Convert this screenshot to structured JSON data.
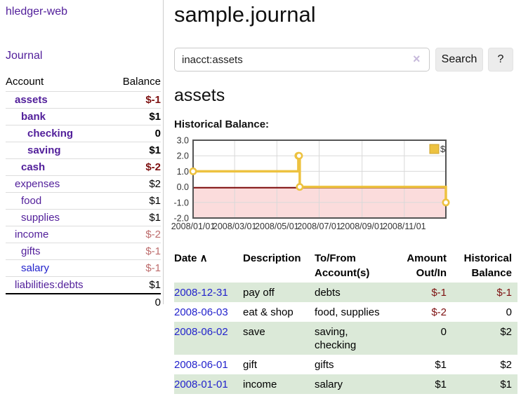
{
  "app": {
    "brand": "hledger-web",
    "nav_journal": "Journal"
  },
  "sidebar": {
    "accounts_table": {
      "headers": {
        "account": "Account",
        "balance": "Balance"
      },
      "rows": [
        {
          "name": "assets",
          "balance": "$-1",
          "depth": 1,
          "emph": true
        },
        {
          "name": "bank",
          "balance": "$1",
          "depth": 2,
          "emph": true
        },
        {
          "name": "checking",
          "balance": "0",
          "depth": 3,
          "emph": true
        },
        {
          "name": "saving",
          "balance": "$1",
          "depth": 3,
          "emph": true
        },
        {
          "name": "cash",
          "balance": "$-2",
          "depth": 2,
          "emph": true
        },
        {
          "name": "expenses",
          "balance": "$2",
          "depth": 1,
          "emph": false
        },
        {
          "name": "food",
          "balance": "$1",
          "depth": 2,
          "emph": false
        },
        {
          "name": "supplies",
          "balance": "$1",
          "depth": 2,
          "emph": false
        },
        {
          "name": "income",
          "balance": "$-2",
          "depth": 1,
          "emph": false
        },
        {
          "name": "gifts",
          "balance": "$-1",
          "depth": 2,
          "emph": false
        },
        {
          "name": "salary",
          "balance": "$-1",
          "depth": 2,
          "emph": false,
          "link_color": "blue"
        },
        {
          "name": "liabilities:debts",
          "balance": "$1",
          "depth": 1,
          "emph": false
        }
      ],
      "total": "0"
    }
  },
  "header": {
    "title": "sample.journal"
  },
  "search": {
    "value": "inacct:assets",
    "clear_icon": "×",
    "button_label": "Search",
    "help_label": "?"
  },
  "account_page": {
    "heading": "assets",
    "chart_label": "Historical Balance:"
  },
  "chart_data": {
    "type": "line",
    "step": true,
    "title": "Historical Balance",
    "series": [
      {
        "name": "$",
        "color": "#edc240",
        "points": [
          [
            "2008-01-01",
            1
          ],
          [
            "2008-06-01",
            2
          ],
          [
            "2008-06-02",
            2
          ],
          [
            "2008-06-03",
            0
          ],
          [
            "2008-12-31",
            -1
          ]
        ]
      }
    ],
    "xlim": [
      "2008-01-01",
      "2008-12-31"
    ],
    "ylim": [
      -2,
      3
    ],
    "yticks": [
      3.0,
      2.0,
      1.0,
      0.0,
      -1.0,
      -2.0
    ],
    "xticks": [
      "2008/01/01",
      "2008/03/01",
      "2008/05/01",
      "2008/07/01",
      "2008/09/01",
      "2008/11/01"
    ],
    "legend": "$",
    "legend_position": "top-right",
    "grid": true,
    "negative_fill": "#fbdcdc",
    "zero_line_color": "#7d0b0b",
    "grid_color": "#d9d9d9",
    "border_color": "#555555"
  },
  "register": {
    "columns": [
      {
        "label": "Date",
        "sort": "∧",
        "align": "left"
      },
      {
        "label": "Description",
        "align": "left"
      },
      {
        "label": "To/From Account(s)",
        "align": "left"
      },
      {
        "label": "Amount Out/In",
        "align": "right"
      },
      {
        "label": "Historical Balance",
        "align": "right"
      }
    ],
    "rows": [
      {
        "date": "2008-12-31",
        "description": "pay off",
        "accounts": "debts",
        "amount": "$-1",
        "balance": "$-1"
      },
      {
        "date": "2008-06-03",
        "description": "eat & shop",
        "accounts": "food, supplies",
        "amount": "$-2",
        "balance": "0"
      },
      {
        "date": "2008-06-02",
        "description": "save",
        "accounts": "saving, checking",
        "amount": "0",
        "balance": "$2"
      },
      {
        "date": "2008-06-01",
        "description": "gift",
        "accounts": "gifts",
        "amount": "$1",
        "balance": "$2"
      },
      {
        "date": "2008-01-01",
        "description": "income",
        "accounts": "salary",
        "amount": "$1",
        "balance": "$1"
      }
    ]
  },
  "colors": {
    "link_purple": "#511e9a",
    "link_blue": "#2222cc",
    "negative_strong": "#7d1010",
    "negative_soft": "#bd6c6c",
    "row_green": "#dbe9d8",
    "series_gold": "#edc240"
  }
}
